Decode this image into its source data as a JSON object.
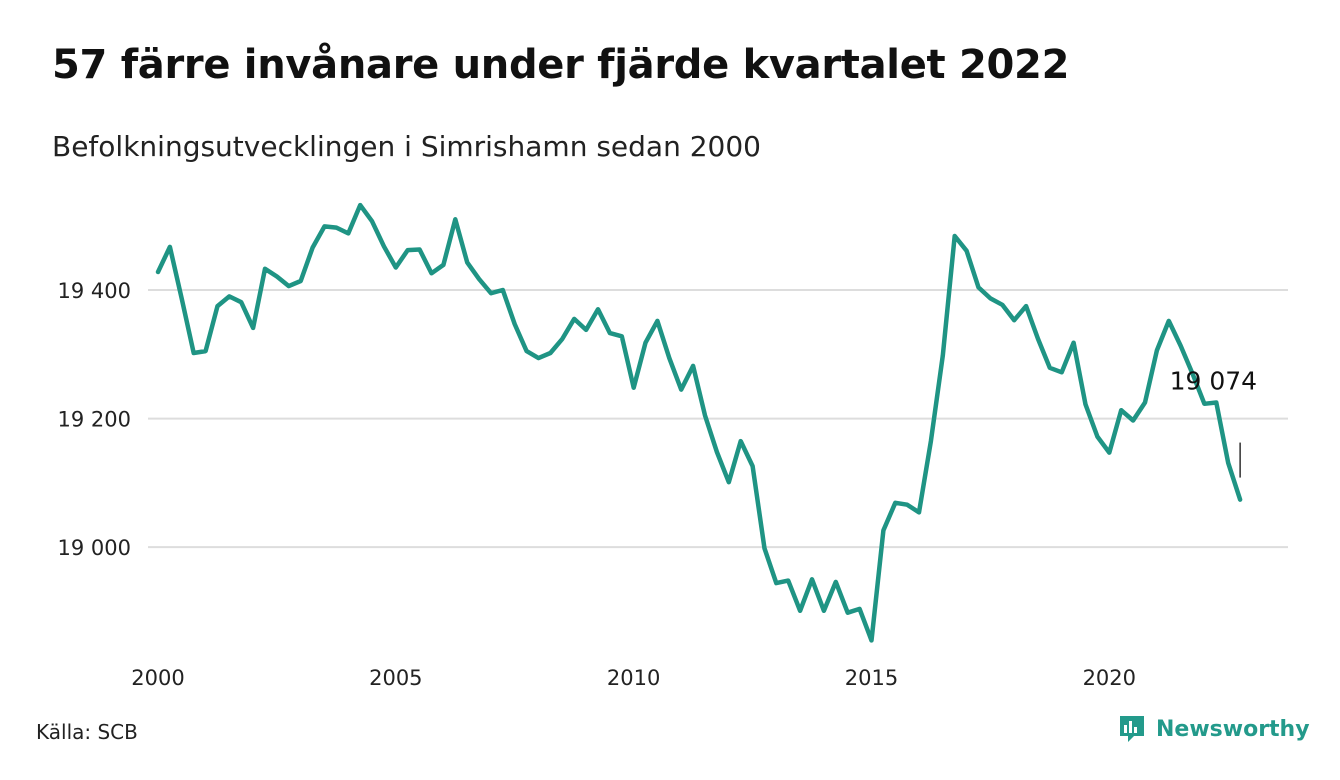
{
  "title": "57 färre invånare under fjärde kvartalet 2022",
  "subtitle": "Befolkningsutvecklingen i Simrishamn sedan 2000",
  "source": "Källa: SCB",
  "brand": {
    "name": "Newsworthy",
    "icon": "newsworthy-logo-icon",
    "color": "#239a8b"
  },
  "colors": {
    "line": "#1f9484",
    "grid": "#dddddd",
    "annotation": "#111111"
  },
  "chart_data": {
    "type": "line",
    "title": "57 färre invånare under fjärde kvartalet 2022",
    "subtitle": "Befolkningsutvecklingen i Simrishamn sedan 2000",
    "xlabel": "",
    "ylabel": "",
    "x_ticks": [
      "2000",
      "2005",
      "2010",
      "2015",
      "2020"
    ],
    "y_ticks": [
      "19 000",
      "19 200",
      "19 400"
    ],
    "xlim": [
      2000,
      2023
    ],
    "ylim": [
      18840,
      19540
    ],
    "grid": "horizontal",
    "annotation": {
      "x": 2022.75,
      "y": 19074,
      "label": "19 074"
    },
    "series": [
      {
        "name": "",
        "x": [
          2000.0,
          2000.25,
          2000.5,
          2000.75,
          2001.0,
          2001.25,
          2001.5,
          2001.75,
          2002.0,
          2002.25,
          2002.5,
          2002.75,
          2003.0,
          2003.25,
          2003.5,
          2003.75,
          2004.0,
          2004.25,
          2004.5,
          2004.75,
          2005.0,
          2005.25,
          2005.5,
          2005.75,
          2006.0,
          2006.25,
          2006.5,
          2006.75,
          2007.0,
          2007.25,
          2007.5,
          2007.75,
          2008.0,
          2008.25,
          2008.5,
          2008.75,
          2009.0,
          2009.25,
          2009.5,
          2009.75,
          2010.0,
          2010.25,
          2010.5,
          2010.75,
          2011.0,
          2011.25,
          2011.5,
          2011.75,
          2012.0,
          2012.25,
          2012.5,
          2012.75,
          2013.0,
          2013.25,
          2013.5,
          2013.75,
          2014.0,
          2014.25,
          2014.5,
          2014.75,
          2015.0,
          2015.25,
          2015.5,
          2015.75,
          2016.0,
          2016.25,
          2016.5,
          2016.75,
          2017.0,
          2017.25,
          2017.5,
          2017.75,
          2018.0,
          2018.25,
          2018.5,
          2018.75,
          2019.0,
          2019.25,
          2019.5,
          2019.75,
          2020.0,
          2020.25,
          2020.5,
          2020.75,
          2021.0,
          2021.25,
          2021.5,
          2021.75,
          2022.0,
          2022.25,
          2022.5,
          2022.75
        ],
        "values": [
          19428,
          19467,
          19386,
          19302,
          19305,
          19375,
          19390,
          19381,
          19341,
          19433,
          19421,
          19406,
          19414,
          19466,
          19499,
          19497,
          19488,
          19532,
          19507,
          19468,
          19435,
          19462,
          19463,
          19426,
          19439,
          19510,
          19443,
          19417,
          19395,
          19400,
          19347,
          19305,
          19294,
          19302,
          19324,
          19355,
          19338,
          19370,
          19333,
          19328,
          19248,
          19318,
          19352,
          19294,
          19245,
          19282,
          19205,
          19148,
          19101,
          19165,
          19126,
          18998,
          18944,
          18948,
          18901,
          18950,
          18901,
          18946,
          18898,
          18904,
          18855,
          19026,
          19069,
          19066,
          19054,
          19165,
          19298,
          19484,
          19461,
          19404,
          19387,
          19377,
          19353,
          19375,
          19324,
          19279,
          19272,
          19318,
          19222,
          19172,
          19147,
          19213,
          19197,
          19225,
          19306,
          19352,
          19313,
          19270,
          19223,
          19225,
          19131,
          19074
        ]
      }
    ]
  }
}
